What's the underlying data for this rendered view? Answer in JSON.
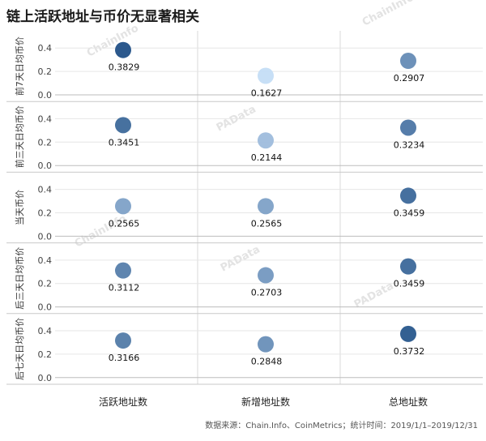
{
  "title": "链上活跃地址与币价无显著相关",
  "footer": "数据来源：Chain.Info、CoinMetrics；统计时间：2019/1/1–2019/12/31",
  "watermarks": [
    "ChainInfo",
    "PAData"
  ],
  "chart_data": {
    "type": "scatter",
    "columns": [
      "活跃地址数",
      "新增地址数",
      "总地址数"
    ],
    "rows": [
      "前7天日均币价",
      "前三天日均币价",
      "当天币价",
      "后三天日均币价",
      "后七天日均币价"
    ],
    "ylim": [
      0,
      0.45
    ],
    "yticks": [
      0.0,
      0.2,
      0.4
    ],
    "ytick_labels": [
      "0.0",
      "0.2",
      "0.4"
    ],
    "color_scale": [
      "#c6dff7",
      "#1f4f86"
    ],
    "values": [
      [
        0.3829,
        0.1627,
        0.2907
      ],
      [
        0.3451,
        0.2144,
        0.3234
      ],
      [
        0.2565,
        0.2565,
        0.3459
      ],
      [
        0.3112,
        0.2703,
        0.3459
      ],
      [
        0.3166,
        0.2848,
        0.3732
      ]
    ],
    "labels": [
      [
        "0.3829",
        "0.1627",
        "0.2907"
      ],
      [
        "0.3451",
        "0.2144",
        "0.3234"
      ],
      [
        "0.2565",
        "0.2565",
        "0.3459"
      ],
      [
        "0.3112",
        "0.2703",
        "0.3459"
      ],
      [
        "0.3166",
        "0.2848",
        "0.3732"
      ]
    ]
  }
}
